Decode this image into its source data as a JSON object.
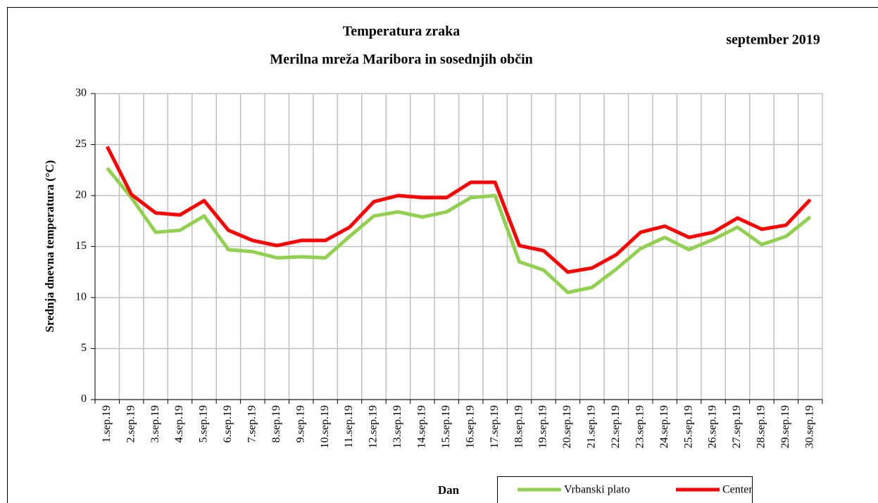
{
  "chart_data": {
    "type": "line",
    "title": "Temperatura zraka",
    "subtitle": "Merilna mreža Maribora in sosednjih občin",
    "annotation": "september 2019",
    "x_label": "Dan",
    "y_label": "Srednja dnevna temperatura (°C)",
    "categories": [
      "1.sep.19",
      "2.sep.19",
      "3.sep.19",
      "4.sep.19",
      "5.sep.19",
      "6.sep.19",
      "7.sep.19",
      "8.sep.19",
      "9.sep.19",
      "10.sep.19",
      "11.sep.19",
      "12.sep.19",
      "13.sep.19",
      "14.sep.19",
      "15.sep.19",
      "16.sep.19",
      "17.sep.19",
      "18.sep.19",
      "19.sep.19",
      "20.sep.19",
      "21.sep.19",
      "22.sep.19",
      "23.sep.19",
      "24.sep.19",
      "25.sep.19",
      "26.sep.19",
      "27.sep.19",
      "28.sep.19",
      "29.sep.19",
      "30.sep.19"
    ],
    "series": [
      {
        "name": "Vrbanski plato",
        "color": "#92d050",
        "values": [
          22.7,
          19.8,
          16.4,
          16.6,
          18.0,
          14.7,
          14.5,
          13.9,
          14.0,
          13.9,
          16.0,
          18.0,
          18.4,
          17.9,
          18.4,
          19.8,
          20.0,
          13.5,
          12.7,
          10.5,
          11.0,
          12.8,
          14.8,
          15.9,
          14.7,
          15.7,
          16.9,
          15.2,
          16.0,
          17.9
        ]
      },
      {
        "name": "Center",
        "color": "#ff0000",
        "values": [
          24.8,
          20.1,
          18.3,
          18.1,
          19.5,
          16.6,
          15.6,
          15.1,
          15.6,
          15.6,
          16.9,
          19.4,
          20.0,
          19.8,
          19.8,
          21.3,
          21.3,
          15.1,
          14.6,
          12.5,
          12.9,
          14.2,
          16.4,
          17.0,
          15.9,
          16.4,
          17.8,
          16.7,
          17.1,
          19.6
        ]
      }
    ],
    "ylim": [
      0,
      30
    ],
    "yticks": [
      0,
      5,
      10,
      15,
      20,
      25,
      30
    ],
    "grid": true
  }
}
